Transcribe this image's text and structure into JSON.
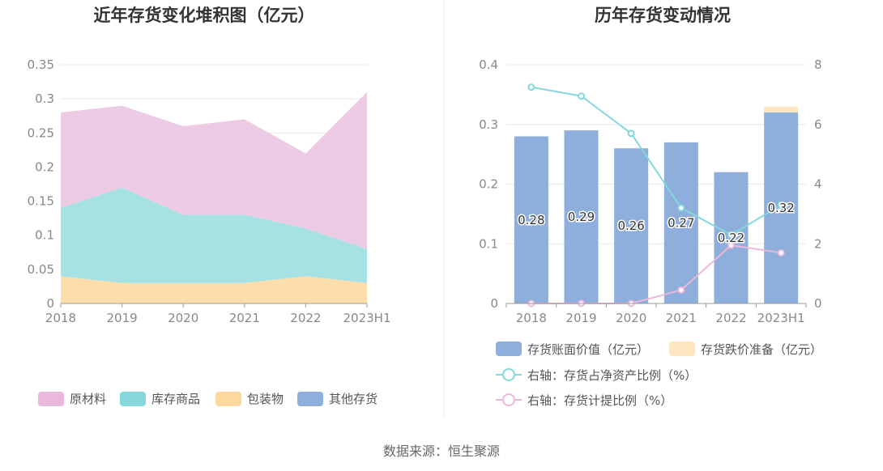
{
  "source_text": "数据来源：恒生聚源",
  "chart_data": [
    {
      "type": "area",
      "stacked": true,
      "title": "近年存货变化堆积图（亿元）",
      "categories": [
        "2018",
        "2019",
        "2020",
        "2021",
        "2022",
        "2023H1"
      ],
      "y_ticks": [
        "0",
        "0.05",
        "0.1",
        "0.15",
        "0.2",
        "0.25",
        "0.3",
        "0.35"
      ],
      "ylim": [
        0,
        0.35
      ],
      "series": [
        {
          "name": "其他存货",
          "values": [
            0,
            0,
            0,
            0,
            0,
            0
          ],
          "color": "#8eaedc"
        },
        {
          "name": "包装物",
          "values": [
            0.04,
            0.03,
            0.03,
            0.03,
            0.04,
            0.03
          ],
          "color": "#fddeaa"
        },
        {
          "name": "库存商品",
          "values": [
            0.1,
            0.14,
            0.1,
            0.1,
            0.07,
            0.05
          ],
          "color": "#a6e1e3"
        },
        {
          "name": "原材料",
          "values": [
            0.14,
            0.12,
            0.13,
            0.14,
            0.11,
            0.23
          ],
          "color": "#edcbe4"
        }
      ],
      "legend": [
        {
          "name": "原材料",
          "color": "#e9b8da"
        },
        {
          "name": "库存商品",
          "color": "#86d8db"
        },
        {
          "name": "包装物",
          "color": "#fcd79e"
        },
        {
          "name": "其他存货",
          "color": "#8eaedc"
        }
      ]
    },
    {
      "type": "bar",
      "title": "历年存货变动情况",
      "categories": [
        "2018",
        "2019",
        "2020",
        "2021",
        "2022",
        "2023H1"
      ],
      "y_ticks": [
        "0",
        "0.1",
        "0.2",
        "0.3",
        "0.4"
      ],
      "ylim": [
        0,
        0.4
      ],
      "y2_ticks": [
        "0",
        "2",
        "4",
        "6",
        "8"
      ],
      "y2lim": [
        0,
        8
      ],
      "series": [
        {
          "name": "存货账面价值（亿元）",
          "axis": "left",
          "kind": "bar",
          "values": [
            0.28,
            0.29,
            0.26,
            0.27,
            0.22,
            0.32
          ],
          "labels": [
            "0.28",
            "0.29",
            "0.26",
            "0.27",
            "0.22",
            "0.32"
          ],
          "color": "#8eaedc"
        },
        {
          "name": "存货跌价准备（亿元）",
          "axis": "left",
          "kind": "bar",
          "values": [
            0,
            0,
            0,
            0,
            0,
            0.01
          ],
          "color": "#fde6c0"
        },
        {
          "name": "右轴：存货占净资产比例（%）",
          "axis": "right",
          "kind": "line",
          "values": [
            7.25,
            6.95,
            5.7,
            3.2,
            2.3,
            3.3
          ],
          "color": "#86d8db"
        },
        {
          "name": "右轴：存货计提比例（%）",
          "axis": "right",
          "kind": "line",
          "values": [
            0,
            0,
            0,
            0.45,
            1.95,
            1.7
          ],
          "color": "#edb8dc"
        }
      ]
    }
  ]
}
